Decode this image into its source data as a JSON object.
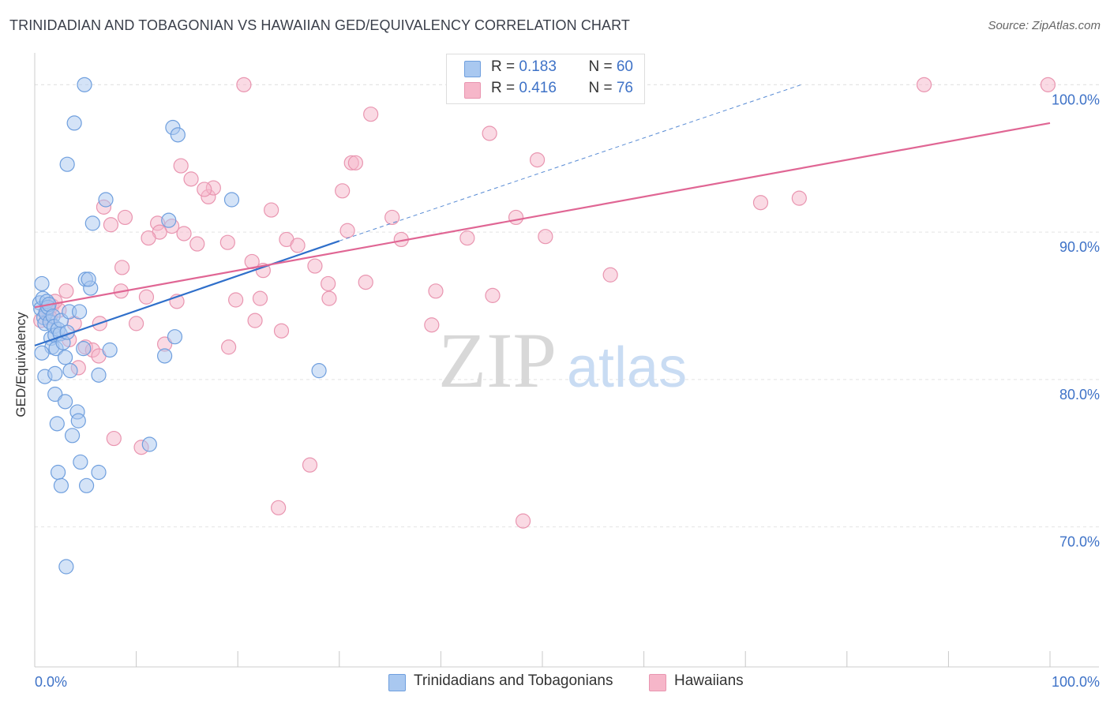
{
  "title": "TRINIDADIAN AND TOBAGONIAN VS HAWAIIAN GED/EQUIVALENCY CORRELATION CHART",
  "source": "Source: ZipAtlas.com",
  "watermark": {
    "zip": "ZIP",
    "atlas": "atlas"
  },
  "legend": {
    "rows": [
      {
        "r_label": "R = ",
        "r_value": "0.183",
        "n_label": "N = ",
        "n_value": "60",
        "color": "#a9c8f0"
      },
      {
        "r_label": "R = ",
        "r_value": "0.416",
        "n_label": "N = ",
        "n_value": "76",
        "color": "#f6b6c9"
      }
    ]
  },
  "colors": {
    "blue_fill": "#a9c8f0",
    "blue_stroke": "#6f9fde",
    "blue_line": "#2f6fca",
    "pink_fill": "#f6b6c9",
    "pink_stroke": "#e995b0",
    "pink_line": "#e06694",
    "grid": "#e4e4e4",
    "tick_label": "#3e72c7"
  },
  "chart_data": {
    "type": "scatter",
    "title": "TRINIDADIAN AND TOBAGONIAN VS HAWAIIAN GED/EQUIVALENCY CORRELATION CHART",
    "xlabel": "",
    "ylabel": "GED/Equivalency",
    "xlim": [
      0,
      100
    ],
    "ylim": [
      60.5,
      102
    ],
    "x_tick_labels": [
      "0.0%",
      "100.0%"
    ],
    "y_ticks": [
      70,
      80,
      90,
      100
    ],
    "y_tick_labels": [
      "70.0%",
      "80.0%",
      "90.0%",
      "100.0%"
    ],
    "grid": true,
    "legend_position": "bottom",
    "series": [
      {
        "name": "Trinidadians and Tobagonians",
        "r": 0.183,
        "n": 60,
        "trend": {
          "x": [
            0,
            30
          ],
          "y": [
            82.3,
            89.4
          ],
          "extended_to": [
            75.5,
            100
          ]
        },
        "points": [
          [
            0.5,
            85.2
          ],
          [
            0.6,
            84.8
          ],
          [
            0.7,
            86.5
          ],
          [
            0.8,
            85.5
          ],
          [
            0.9,
            84.2
          ],
          [
            1.0,
            83.8
          ],
          [
            1.1,
            84.5
          ],
          [
            1.2,
            85.3
          ],
          [
            1.3,
            84.9
          ],
          [
            1.4,
            85.1
          ],
          [
            1.5,
            83.9
          ],
          [
            1.6,
            82.8
          ],
          [
            1.7,
            82.2
          ],
          [
            1.8,
            84.3
          ],
          [
            1.9,
            83.6
          ],
          [
            2.0,
            83.0
          ],
          [
            2.1,
            82.1
          ],
          [
            2.3,
            83.4
          ],
          [
            2.5,
            83.1
          ],
          [
            2.6,
            84.0
          ],
          [
            2.8,
            82.5
          ],
          [
            3.0,
            81.5
          ],
          [
            3.2,
            83.2
          ],
          [
            3.4,
            84.6
          ],
          [
            0.7,
            81.8
          ],
          [
            1.0,
            80.2
          ],
          [
            2.0,
            80.4
          ],
          [
            3.5,
            80.6
          ],
          [
            2.0,
            79.0
          ],
          [
            3.0,
            78.5
          ],
          [
            4.2,
            77.8
          ],
          [
            4.3,
            77.2
          ],
          [
            2.2,
            77.0
          ],
          [
            3.7,
            76.2
          ],
          [
            4.5,
            74.4
          ],
          [
            6.3,
            73.7
          ],
          [
            2.3,
            73.7
          ],
          [
            2.6,
            72.8
          ],
          [
            5.1,
            72.8
          ],
          [
            3.1,
            67.3
          ],
          [
            4.4,
            84.6
          ],
          [
            4.8,
            82.1
          ],
          [
            5.0,
            86.8
          ],
          [
            5.5,
            86.2
          ],
          [
            5.3,
            86.8
          ],
          [
            7.4,
            82.0
          ],
          [
            6.3,
            80.3
          ],
          [
            7.0,
            92.2
          ],
          [
            5.7,
            90.6
          ],
          [
            3.2,
            94.6
          ],
          [
            3.9,
            97.4
          ],
          [
            4.9,
            100.0
          ],
          [
            13.2,
            90.8
          ],
          [
            13.8,
            82.9
          ],
          [
            12.8,
            81.6
          ],
          [
            13.6,
            97.1
          ],
          [
            14.1,
            96.6
          ],
          [
            19.4,
            92.2
          ],
          [
            28.0,
            80.6
          ],
          [
            11.3,
            75.6
          ]
        ]
      },
      {
        "name": "Hawaiians",
        "r": 0.416,
        "n": 76,
        "trend": {
          "x": [
            0,
            100
          ],
          "y": [
            84.9,
            97.4
          ]
        },
        "points": [
          [
            20.6,
            100.0
          ],
          [
            87.6,
            100.0
          ],
          [
            99.8,
            100.0
          ],
          [
            33.1,
            98.0
          ],
          [
            44.8,
            96.7
          ],
          [
            49.5,
            94.9
          ],
          [
            31.2,
            94.7
          ],
          [
            31.6,
            94.7
          ],
          [
            14.4,
            94.5
          ],
          [
            15.4,
            93.6
          ],
          [
            17.1,
            92.4
          ],
          [
            17.6,
            93.0
          ],
          [
            16.7,
            92.9
          ],
          [
            30.3,
            92.8
          ],
          [
            71.5,
            92.0
          ],
          [
            75.3,
            92.3
          ],
          [
            6.8,
            91.7
          ],
          [
            23.3,
            91.5
          ],
          [
            35.2,
            91.0
          ],
          [
            47.4,
            91.0
          ],
          [
            8.9,
            91.0
          ],
          [
            12.1,
            90.6
          ],
          [
            13.5,
            90.4
          ],
          [
            7.5,
            90.5
          ],
          [
            12.3,
            90.0
          ],
          [
            14.7,
            89.9
          ],
          [
            30.8,
            90.1
          ],
          [
            11.2,
            89.6
          ],
          [
            24.8,
            89.5
          ],
          [
            36.1,
            89.5
          ],
          [
            42.6,
            89.6
          ],
          [
            50.3,
            89.7
          ],
          [
            16.0,
            89.2
          ],
          [
            19.0,
            89.3
          ],
          [
            25.9,
            89.1
          ],
          [
            21.4,
            88.0
          ],
          [
            8.6,
            87.6
          ],
          [
            27.6,
            87.7
          ],
          [
            22.5,
            87.4
          ],
          [
            56.7,
            87.1
          ],
          [
            28.9,
            86.5
          ],
          [
            32.6,
            86.6
          ],
          [
            29.0,
            85.5
          ],
          [
            39.5,
            86.0
          ],
          [
            45.1,
            85.7
          ],
          [
            8.5,
            86.0
          ],
          [
            3.1,
            86.0
          ],
          [
            11.0,
            85.6
          ],
          [
            14.0,
            85.3
          ],
          [
            19.8,
            85.4
          ],
          [
            22.2,
            85.5
          ],
          [
            1.7,
            85.0
          ],
          [
            2.4,
            84.7
          ],
          [
            0.6,
            84.0
          ],
          [
            1.5,
            84.2
          ],
          [
            1.2,
            84.8
          ],
          [
            6.4,
            83.8
          ],
          [
            3.9,
            83.8
          ],
          [
            10.0,
            83.8
          ],
          [
            21.7,
            84.0
          ],
          [
            24.3,
            83.3
          ],
          [
            39.1,
            83.7
          ],
          [
            3.4,
            82.7
          ],
          [
            5.0,
            82.2
          ],
          [
            5.7,
            82.0
          ],
          [
            12.8,
            82.4
          ],
          [
            19.1,
            82.2
          ],
          [
            6.3,
            81.6
          ],
          [
            4.3,
            80.8
          ],
          [
            7.8,
            76.0
          ],
          [
            10.5,
            75.4
          ],
          [
            27.1,
            74.2
          ],
          [
            24.0,
            71.3
          ],
          [
            48.1,
            70.4
          ],
          [
            1.1,
            84.6
          ],
          [
            2.0,
            85.3
          ]
        ]
      }
    ]
  }
}
